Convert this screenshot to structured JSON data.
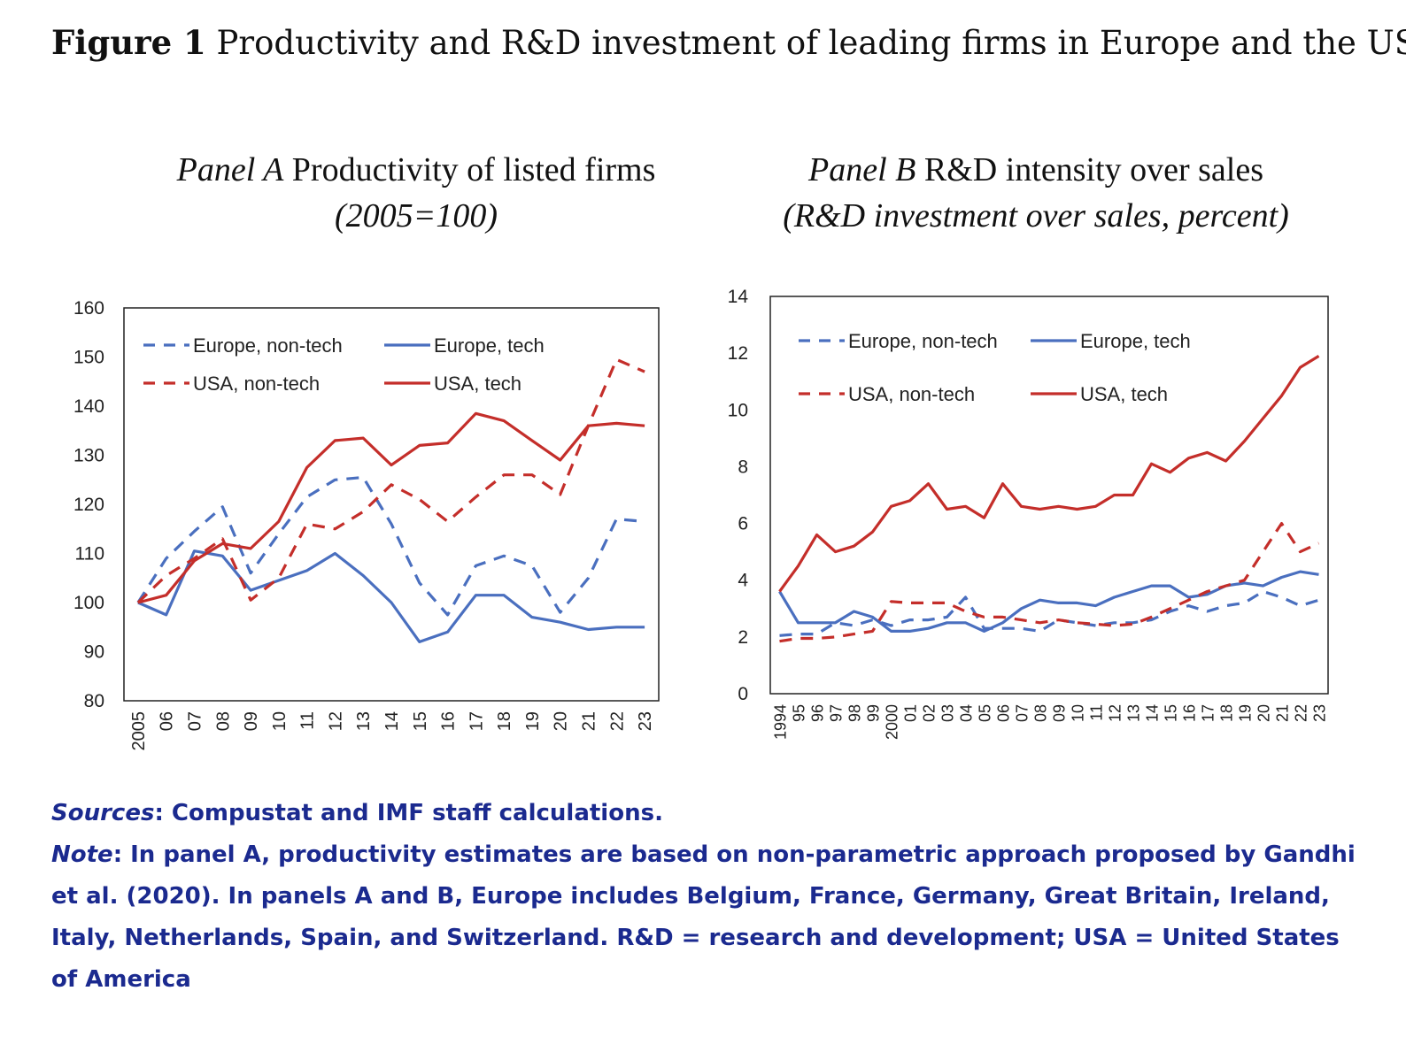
{
  "figure": {
    "label": "Figure 1",
    "title": "Productivity and R&D investment of leading firms in Europe and the US"
  },
  "notes": {
    "sources_label": "Sources",
    "sources_text": ": Compustat and IMF staff calculations.",
    "note_label": "Note",
    "note_text": ": In panel A, productivity estimates are based on non-parametric approach proposed by Gandhi et al. (2020). In panels A and B, Europe includes Belgium, France, Germany, Great Britain, Ireland, Italy, Netherlands, Spain, and Switzerland. R&D = research and development; USA = United States of America"
  },
  "colors": {
    "europe": "#4a6fbf",
    "usa": "#c42e2a"
  },
  "chart_data": [
    {
      "type": "line",
      "panel_label": "Panel A",
      "title": "Productivity of listed firms",
      "subtitle": "(2005=100)",
      "x": [
        "2005",
        "06",
        "07",
        "08",
        "09",
        "10",
        "11",
        "12",
        "13",
        "14",
        "15",
        "16",
        "17",
        "18",
        "19",
        "20",
        "21",
        "22",
        "23"
      ],
      "ylim": [
        80,
        160
      ],
      "yticks": [
        80,
        90,
        100,
        110,
        120,
        130,
        140,
        150,
        160
      ],
      "grid": false,
      "legend_position": "top-left",
      "series": [
        {
          "name": "Europe, non-tech",
          "color": "#4a6fbf",
          "dash": true,
          "values": [
            100,
            109,
            114.5,
            119.5,
            106,
            114,
            121.5,
            125,
            125.5,
            116,
            104,
            97.5,
            107.5,
            109.5,
            107.5,
            98,
            105,
            117,
            116.5
          ]
        },
        {
          "name": "Europe, tech",
          "color": "#4a6fbf",
          "dash": false,
          "values": [
            100,
            97.5,
            110.5,
            109.5,
            102.5,
            104.5,
            106.5,
            110,
            105.5,
            100,
            92,
            94,
            101.5,
            101.5,
            97,
            96,
            94.5,
            95,
            95
          ]
        },
        {
          "name": "USA, non-tech",
          "color": "#c42e2a",
          "dash": true,
          "values": [
            100,
            105.5,
            109,
            113,
            100.5,
            105,
            116,
            115,
            118.5,
            124,
            121,
            116.5,
            121.5,
            126,
            126,
            122,
            136,
            149.5,
            147
          ]
        },
        {
          "name": "USA, tech",
          "color": "#c42e2a",
          "dash": false,
          "values": [
            100,
            101.5,
            108.5,
            112,
            111,
            116.5,
            127.5,
            133,
            133.5,
            128,
            132,
            132.5,
            138.5,
            137,
            133,
            129,
            136,
            136.5,
            136
          ]
        }
      ]
    },
    {
      "type": "line",
      "panel_label": "Panel B",
      "title": "R&D intensity over sales",
      "subtitle": "(R&D investment over sales, percent)",
      "x": [
        "1994",
        "95",
        "96",
        "97",
        "98",
        "99",
        "2000",
        "01",
        "02",
        "03",
        "04",
        "05",
        "06",
        "07",
        "08",
        "09",
        "10",
        "11",
        "12",
        "13",
        "14",
        "15",
        "16",
        "17",
        "18",
        "19",
        "20",
        "21",
        "22",
        "23"
      ],
      "ylim": [
        0,
        14
      ],
      "yticks": [
        0,
        2,
        4,
        6,
        8,
        10,
        12,
        14
      ],
      "grid": false,
      "legend_position": "top",
      "series": [
        {
          "name": "Europe, non-tech",
          "color": "#4a6fbf",
          "dash": true,
          "values": [
            2.05,
            2.1,
            2.1,
            2.5,
            2.4,
            2.6,
            2.4,
            2.6,
            2.6,
            2.7,
            3.4,
            2.3,
            2.3,
            2.3,
            2.2,
            2.6,
            2.5,
            2.4,
            2.5,
            2.5,
            2.6,
            2.9,
            3.1,
            2.9,
            3.1,
            3.2,
            3.6,
            3.4,
            3.1,
            3.3
          ]
        },
        {
          "name": "Europe, tech",
          "color": "#4a6fbf",
          "dash": false,
          "values": [
            3.6,
            2.5,
            2.5,
            2.5,
            2.9,
            2.7,
            2.2,
            2.2,
            2.3,
            2.5,
            2.5,
            2.2,
            2.5,
            3.0,
            3.3,
            3.2,
            3.2,
            3.1,
            3.4,
            3.6,
            3.8,
            3.8,
            3.4,
            3.5,
            3.8,
            3.9,
            3.8,
            4.1,
            4.3,
            4.2
          ]
        },
        {
          "name": "USA, non-tech",
          "color": "#c42e2a",
          "dash": true,
          "values": [
            1.85,
            1.95,
            1.95,
            2.0,
            2.1,
            2.2,
            3.25,
            3.2,
            3.2,
            3.2,
            2.9,
            2.7,
            2.7,
            2.6,
            2.5,
            2.6,
            2.5,
            2.45,
            2.4,
            2.45,
            2.7,
            3.0,
            3.3,
            3.6,
            3.8,
            4.0,
            5.0,
            6.0,
            5.0,
            5.3
          ]
        },
        {
          "name": "USA, tech",
          "color": "#c42e2a",
          "dash": false,
          "values": [
            3.6,
            4.5,
            5.6,
            5.0,
            5.2,
            5.7,
            6.6,
            6.8,
            7.4,
            6.5,
            6.6,
            6.2,
            7.4,
            6.6,
            6.5,
            6.6,
            6.5,
            6.6,
            7.0,
            7.0,
            8.1,
            7.8,
            8.3,
            8.5,
            8.2,
            8.9,
            9.7,
            10.5,
            11.5,
            11.9
          ]
        }
      ]
    }
  ]
}
